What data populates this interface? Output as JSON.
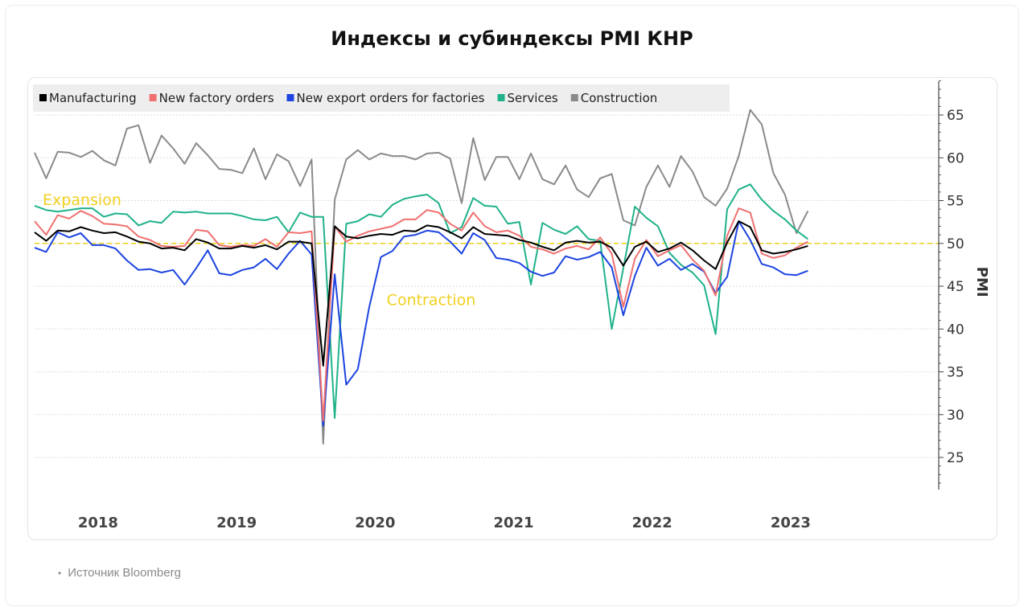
{
  "title": "Индексы и субиндексы PMI КНР",
  "source": "Источник Bloomberg",
  "chart_data": {
    "type": "line",
    "ylabel": "PMI",
    "ylim": [
      22,
      69
    ],
    "yticks": [
      25,
      30,
      35,
      40,
      45,
      50,
      55,
      60,
      65
    ],
    "x_year_labels": [
      "2018",
      "2019",
      "2020",
      "2021",
      "2022",
      "2023"
    ],
    "x_start": "2018-01",
    "grid": true,
    "legend_position": "top-left",
    "reference_line": {
      "value": 50,
      "color": "#e8d21a"
    },
    "annotations": [
      {
        "text": "Expansion",
        "month_index": 0.7,
        "y": 54.5,
        "color": "#f0d020"
      },
      {
        "text": "Contraction",
        "month_index": 30.5,
        "y": 42.8,
        "color": "#f0d020"
      }
    ],
    "series": [
      {
        "name": "Manufacturing",
        "color": "#000000",
        "values": [
          51.3,
          50.3,
          51.5,
          51.4,
          51.9,
          51.5,
          51.2,
          51.3,
          50.8,
          50.2,
          50.0,
          49.4,
          49.5,
          49.2,
          50.5,
          50.1,
          49.4,
          49.4,
          49.7,
          49.5,
          49.8,
          49.3,
          50.2,
          50.2,
          50.0,
          35.7,
          52.0,
          50.8,
          50.6,
          50.9,
          51.1,
          51.0,
          51.5,
          51.4,
          52.1,
          51.9,
          51.3,
          50.6,
          51.9,
          51.1,
          51.0,
          50.9,
          50.4,
          50.1,
          49.6,
          49.2,
          50.1,
          50.3,
          50.1,
          50.2,
          49.5,
          47.4,
          49.6,
          50.2,
          49.0,
          49.4,
          50.1,
          49.2,
          48.0,
          47.0,
          50.1,
          52.6,
          51.9,
          49.2,
          48.8,
          49.0,
          49.3,
          49.7
        ]
      },
      {
        "name": "New factory orders",
        "color": "#f07070",
        "values": [
          52.6,
          51.0,
          53.3,
          52.9,
          53.8,
          53.2,
          52.3,
          52.2,
          52.0,
          50.8,
          50.4,
          49.7,
          49.6,
          49.7,
          51.6,
          51.4,
          49.8,
          49.6,
          49.8,
          49.7,
          50.5,
          49.6,
          51.3,
          51.2,
          51.4,
          29.3,
          52.0,
          50.2,
          50.9,
          51.4,
          51.7,
          52.0,
          52.8,
          52.8,
          53.9,
          53.6,
          52.3,
          51.5,
          53.6,
          52.0,
          51.3,
          51.5,
          50.9,
          49.6,
          49.3,
          48.8,
          49.4,
          49.7,
          49.3,
          50.7,
          48.8,
          42.6,
          48.2,
          50.4,
          48.5,
          49.2,
          49.8,
          48.1,
          46.8,
          43.9,
          50.9,
          54.1,
          53.6,
          48.8,
          48.3,
          48.6,
          49.5,
          50.2
        ]
      },
      {
        "name": "New export orders for factories",
        "color": "#1d44e0",
        "values": [
          49.5,
          49.0,
          51.3,
          50.7,
          51.2,
          49.8,
          49.8,
          49.4,
          48.0,
          46.9,
          47.0,
          46.6,
          46.9,
          45.2,
          47.1,
          49.2,
          46.5,
          46.3,
          46.9,
          47.2,
          48.2,
          47.0,
          48.8,
          50.3,
          48.7,
          28.7,
          46.4,
          33.5,
          35.3,
          42.6,
          48.4,
          49.1,
          50.8,
          51.0,
          51.5,
          51.3,
          50.2,
          48.8,
          51.2,
          50.4,
          48.3,
          48.1,
          47.7,
          46.7,
          46.2,
          46.6,
          48.5,
          48.1,
          48.4,
          49.0,
          47.2,
          41.6,
          46.2,
          49.5,
          47.4,
          48.2,
          46.9,
          47.6,
          46.7,
          44.2,
          46.1,
          52.6,
          50.4,
          47.6,
          47.2,
          46.4,
          46.3,
          46.8
        ]
      },
      {
        "name": "Services",
        "color": "#1fb28a",
        "values": [
          54.4,
          53.9,
          53.7,
          53.9,
          54.1,
          54.1,
          53.1,
          53.5,
          53.4,
          52.1,
          52.6,
          52.4,
          53.7,
          53.6,
          53.7,
          53.5,
          53.5,
          53.5,
          53.2,
          52.8,
          52.7,
          53.1,
          51.3,
          53.6,
          53.1,
          53.1,
          29.6,
          52.3,
          52.6,
          53.4,
          53.1,
          54.5,
          55.2,
          55.5,
          55.7,
          54.7,
          51.2,
          51.9,
          55.3,
          54.4,
          54.3,
          52.3,
          52.5,
          45.2,
          52.4,
          51.6,
          51.1,
          52.0,
          50.5,
          50.3,
          40.0,
          47.1,
          54.3,
          53.0,
          52.0,
          48.9,
          47.5,
          46.6,
          45.1,
          39.4,
          54.0,
          56.3,
          56.9,
          55.1,
          53.8,
          52.8,
          51.5,
          50.5
        ]
      },
      {
        "name": "Construction",
        "color": "#8a8a8a",
        "values": [
          60.6,
          57.6,
          60.7,
          60.6,
          60.1,
          60.8,
          59.7,
          59.1,
          63.4,
          63.8,
          59.4,
          62.6,
          61.1,
          59.3,
          61.7,
          60.3,
          58.7,
          58.6,
          58.2,
          61.1,
          57.5,
          60.4,
          59.6,
          56.7,
          59.8,
          26.6,
          55.1,
          59.8,
          60.9,
          59.8,
          60.5,
          60.2,
          60.2,
          59.8,
          60.5,
          60.6,
          59.9,
          54.7,
          62.3,
          57.4,
          60.1,
          60.1,
          57.5,
          60.5,
          57.5,
          56.9,
          59.1,
          56.3,
          55.4,
          57.6,
          58.1,
          52.7,
          52.1,
          56.6,
          59.1,
          56.6,
          60.2,
          58.4,
          55.4,
          54.4,
          56.4,
          60.2,
          65.6,
          63.9,
          58.2,
          55.7,
          51.2,
          53.8
        ]
      }
    ]
  }
}
